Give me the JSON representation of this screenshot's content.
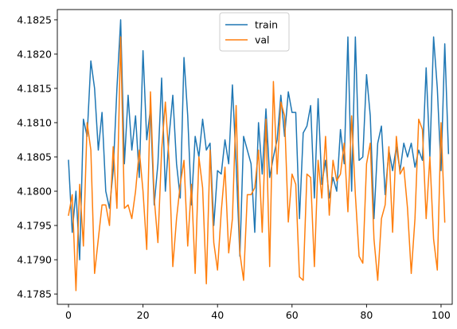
{
  "chart_data": {
    "type": "line",
    "xlim": [
      -3,
      103
    ],
    "ylim": [
      4.17835,
      4.18265
    ],
    "x_ticks": [
      0,
      20,
      40,
      60,
      80,
      100
    ],
    "y_ticks": [
      4.1785,
      4.179,
      4.1795,
      4.18,
      4.1805,
      4.181,
      4.1815,
      4.182,
      4.1825
    ],
    "grid": false,
    "legend_position": "top-center",
    "series": [
      {
        "name": "train",
        "color": "#1f77b4",
        "values": [
          4.18045,
          4.1794,
          4.18,
          4.179,
          4.18105,
          4.1808,
          4.1819,
          4.1815,
          4.1806,
          4.18115,
          4.18,
          4.17975,
          4.1803,
          4.1815,
          4.1825,
          4.1804,
          4.1814,
          4.1806,
          4.1811,
          4.1802,
          4.18205,
          4.18075,
          4.1812,
          4.1798,
          4.1804,
          4.18165,
          4.18,
          4.1808,
          4.1814,
          4.1804,
          4.1799,
          4.18195,
          4.1811,
          4.1798,
          4.1808,
          4.1805,
          4.18105,
          4.1806,
          4.1807,
          4.1795,
          4.1803,
          4.18025,
          4.18075,
          4.1804,
          4.18155,
          4.1804,
          4.17905,
          4.1808,
          4.1806,
          4.1804,
          4.1794,
          4.181,
          4.18025,
          4.1812,
          4.1802,
          4.1805,
          4.18075,
          4.1814,
          4.1808,
          4.18145,
          4.18115,
          4.18115,
          4.1796,
          4.18085,
          4.18095,
          4.18125,
          4.1799,
          4.18135,
          4.1801,
          4.18045,
          4.1799,
          4.1802,
          4.18,
          4.1809,
          4.1804,
          4.18225,
          4.18,
          4.18225,
          4.18045,
          4.1805,
          4.1817,
          4.1811,
          4.1796,
          4.1807,
          4.18095,
          4.17995,
          4.1806,
          4.1803,
          4.18065,
          4.1803,
          4.1807,
          4.1805,
          4.1807,
          4.18035,
          4.1806,
          4.18045,
          4.1818,
          4.1805,
          4.18225,
          4.1815,
          4.1803,
          4.18215,
          4.18055
        ]
      },
      {
        "name": "val",
        "color": "#ff7f0e",
        "values": [
          4.17965,
          4.17995,
          4.17855,
          4.1801,
          4.1792,
          4.181,
          4.1806,
          4.1788,
          4.1793,
          4.1798,
          4.1798,
          4.1795,
          4.18065,
          4.17975,
          4.18225,
          4.17975,
          4.1798,
          4.1796,
          4.18,
          4.1806,
          4.18,
          4.17915,
          4.18145,
          4.1799,
          4.17925,
          4.1806,
          4.1813,
          4.18045,
          4.1789,
          4.1796,
          4.1801,
          4.18045,
          4.1792,
          4.1801,
          4.1788,
          4.1805,
          4.18005,
          4.17865,
          4.1806,
          4.17925,
          4.17885,
          4.1797,
          4.18035,
          4.1791,
          4.1796,
          4.18125,
          4.1791,
          4.1787,
          4.17995,
          4.17995,
          4.18005,
          4.1806,
          4.1794,
          4.18105,
          4.1789,
          4.1816,
          4.18025,
          4.1813,
          4.1811,
          4.17955,
          4.18025,
          4.1801,
          4.17875,
          4.1787,
          4.18025,
          4.1802,
          4.1789,
          4.18045,
          4.1799,
          4.1808,
          4.17965,
          4.18045,
          4.18015,
          4.18025,
          4.1807,
          4.1797,
          4.1811,
          4.17995,
          4.17905,
          4.17895,
          4.1804,
          4.1807,
          4.1793,
          4.1787,
          4.1796,
          4.1798,
          4.18065,
          4.1794,
          4.1808,
          4.18025,
          4.18035,
          4.17975,
          4.1788,
          4.1796,
          4.18105,
          4.1809,
          4.1796,
          4.1805,
          4.1793,
          4.17885,
          4.181,
          4.17955
        ]
      }
    ]
  }
}
